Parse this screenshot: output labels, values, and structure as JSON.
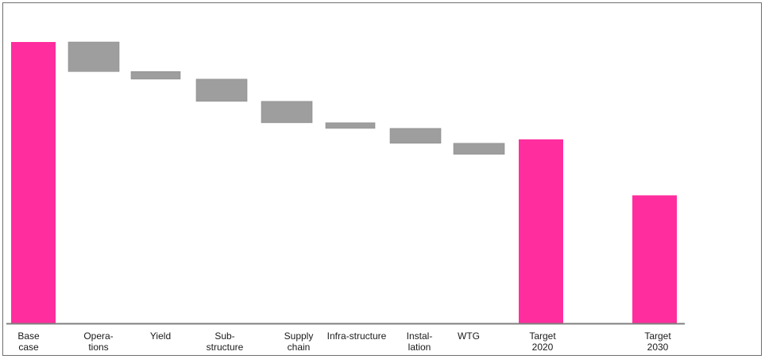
{
  "chart_data": {
    "type": "bar",
    "subtype": "waterfall",
    "title": "",
    "xlabel": "",
    "ylabel": "",
    "ylim": [
      0,
      100
    ],
    "grid": false,
    "legend": "none",
    "colors": {
      "total": "#ff2d9e",
      "step": "#9e9e9e",
      "axis": "#7f7f7f"
    },
    "categories": [
      "Base case",
      "Opera-tions",
      "Yield",
      "Sub-structure",
      "Supply chain",
      "Infra-structure",
      "Instal-lation",
      "WTG",
      "Target 2020",
      "Target 2030"
    ],
    "tick_labels": [
      [
        "Base",
        "case"
      ],
      [
        "Opera-",
        "tions"
      ],
      [
        "Yield"
      ],
      [
        "Sub-",
        "structure"
      ],
      [
        "Supply",
        "chain"
      ],
      [
        "Infra-structure"
      ],
      [
        "Instal-",
        "lation"
      ],
      [
        "WTG"
      ],
      [
        "Target",
        "2020"
      ],
      [
        "Target",
        "2030"
      ]
    ],
    "bars": [
      {
        "category": "Base case",
        "kind": "total",
        "start": 0,
        "end": 100
      },
      {
        "category": "Opera-tions",
        "kind": "step",
        "start": 100,
        "end": 89.5
      },
      {
        "category": "Yield",
        "kind": "step",
        "start": 89.5,
        "end": 86.8
      },
      {
        "category": "Sub-structure",
        "kind": "step",
        "start": 86.8,
        "end": 78.9
      },
      {
        "category": "Supply chain",
        "kind": "step",
        "start": 78.9,
        "end": 71.3
      },
      {
        "category": "Infra-structure",
        "kind": "step",
        "start": 71.3,
        "end": 69.3
      },
      {
        "category": "Instal-lation",
        "kind": "step",
        "start": 69.3,
        "end": 64.0
      },
      {
        "category": "WTG",
        "kind": "step",
        "start": 64.0,
        "end": 60.1
      },
      {
        "category": "Target 2020",
        "kind": "total",
        "start": 0,
        "end": 65.4
      },
      {
        "category": "Target 2030",
        "kind": "total",
        "start": 0,
        "end": 45.5
      }
    ]
  }
}
